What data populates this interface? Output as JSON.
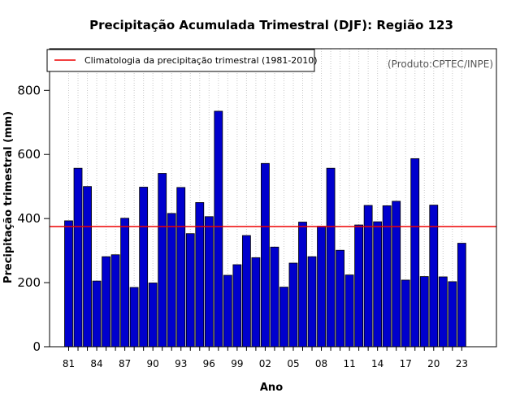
{
  "chart_data": {
    "type": "bar",
    "title": "Precipitação Acumulada Trimestral (DJF): Região 123",
    "xlabel": "Ano",
    "ylabel": "Precipitação trimestral (mm)",
    "credit": "(Produto:CPTEC/INPE)",
    "ylim": [
      0,
      930
    ],
    "yticks": [
      0,
      200,
      400,
      600,
      800
    ],
    "ytick_labels": [
      "0",
      "200",
      "400",
      "600",
      "800"
    ],
    "xtick_labels": [
      "81",
      "84",
      "87",
      "90",
      "93",
      "96",
      "99",
      "02",
      "05",
      "08",
      "11",
      "14",
      "17",
      "20",
      "23"
    ],
    "categories": [
      "1981",
      "1982",
      "1983",
      "1984",
      "1985",
      "1986",
      "1987",
      "1988",
      "1989",
      "1990",
      "1991",
      "1992",
      "1993",
      "1994",
      "1995",
      "1996",
      "1997",
      "1998",
      "1999",
      "2000",
      "2001",
      "2002",
      "2003",
      "2004",
      "2005",
      "2006",
      "2007",
      "2008",
      "2009",
      "2010",
      "2011",
      "2012",
      "2013",
      "2014",
      "2015",
      "2016",
      "2017",
      "2018",
      "2019",
      "2020",
      "2021",
      "2022",
      "2023"
    ],
    "values": [
      393,
      557,
      500,
      205,
      281,
      287,
      401,
      185,
      498,
      199,
      541,
      416,
      497,
      353,
      450,
      406,
      735,
      223,
      256,
      347,
      278,
      572,
      311,
      186,
      261,
      389,
      281,
      376,
      557,
      301,
      224,
      380,
      441,
      390,
      440,
      454,
      208,
      587,
      219,
      442,
      218,
      203,
      323
    ],
    "bar_color": "#0000cd",
    "climatology": {
      "label": "Climatologia da precipitação trimestral (1981-2010)",
      "value": 375,
      "color": "#ee0000"
    },
    "legend_position": "top-left",
    "grid": "vertical dotted"
  }
}
